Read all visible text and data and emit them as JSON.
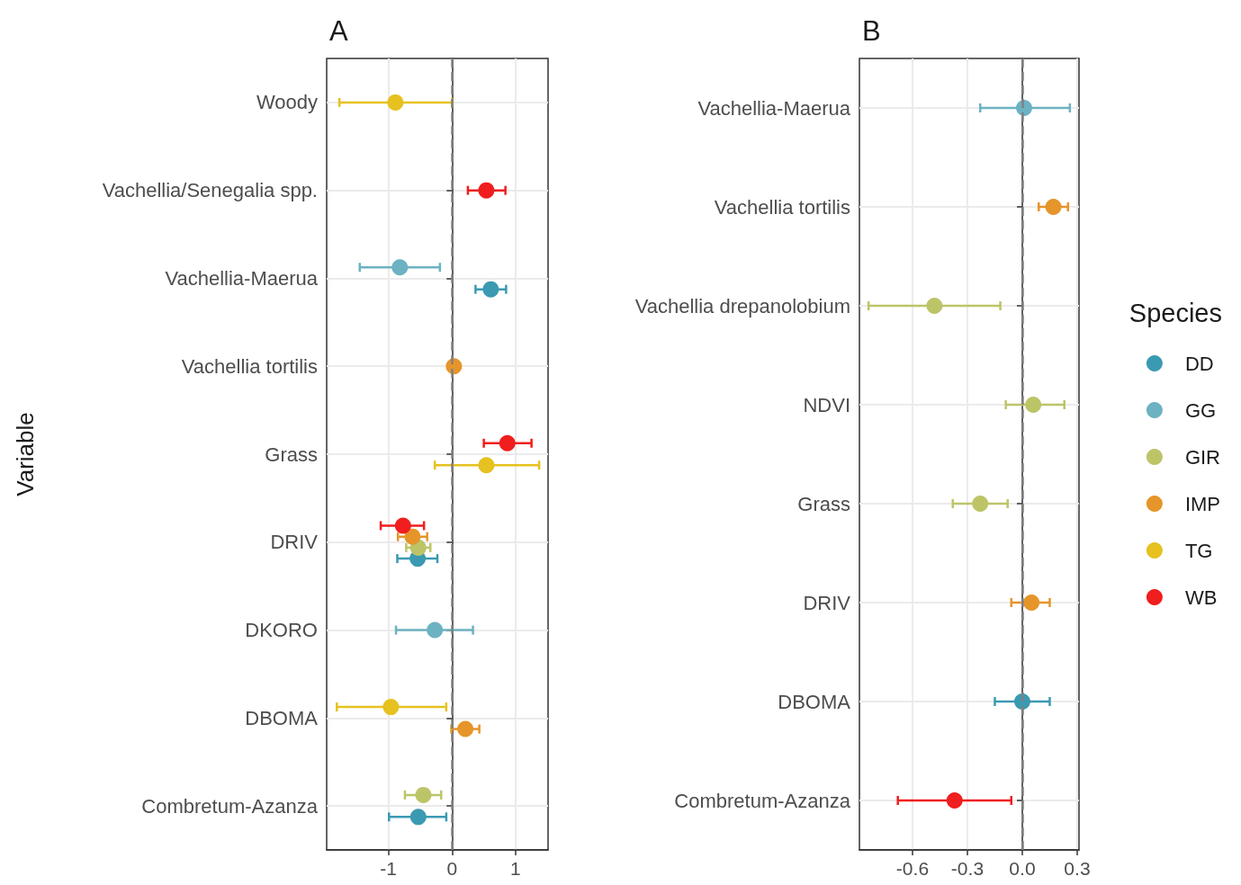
{
  "chart_data": [
    {
      "type": "scatter",
      "title": "A",
      "ylabel": "Variable",
      "legend_title": "Species",
      "legend": "right",
      "orientation": "horizontal",
      "marker": "circle",
      "grid": true,
      "categories": [
        "Woody",
        "Vachellia/Senegalia spp.",
        "Vachellia-Maerua",
        "Vachellia tortilis",
        "Grass",
        "DRIV",
        "DKORO",
        "DBOMA",
        "Combretum-Azanza"
      ],
      "xlim": [
        -1.97,
        1.51
      ],
      "xticks": [
        -1,
        0,
        1
      ],
      "ref_lines": [
        {
          "axis": "x",
          "value": 0,
          "color": "#808080",
          "line_style": "dashed"
        }
      ],
      "series": [
        {
          "name": "DD",
          "color": "#3b9ab2",
          "values": [
            null,
            null,
            0.61,
            null,
            null,
            -0.54,
            null,
            null,
            -0.53
          ],
          "errors": [
            null,
            null,
            [
              0.37,
              0.85
            ],
            null,
            null,
            [
              -0.86,
              -0.23
            ],
            null,
            null,
            [
              -0.99,
              -0.09
            ]
          ]
        },
        {
          "name": "GG",
          "color": "#6cb2c2",
          "values": [
            null,
            null,
            -0.82,
            null,
            null,
            null,
            -0.27,
            null,
            null
          ],
          "errors": [
            null,
            null,
            [
              -1.45,
              -0.19
            ],
            null,
            null,
            null,
            [
              -0.88,
              0.33
            ],
            null,
            null
          ]
        },
        {
          "name": "GIR",
          "color": "#bdc468",
          "values": [
            null,
            null,
            null,
            null,
            null,
            -0.53,
            null,
            null,
            -0.45
          ],
          "errors": [
            null,
            null,
            null,
            null,
            null,
            [
              -0.72,
              -0.34
            ],
            null,
            null,
            [
              -0.74,
              -0.17
            ]
          ]
        },
        {
          "name": "IMP",
          "color": "#e5952a",
          "values": [
            null,
            null,
            null,
            0.03,
            null,
            -0.62,
            null,
            0.21,
            null
          ],
          "errors": [
            null,
            null,
            null,
            null,
            null,
            [
              -0.85,
              -0.39
            ],
            null,
            [
              -0.01,
              0.43
            ],
            null
          ]
        },
        {
          "name": "TG",
          "color": "#e6c11f",
          "values": [
            -0.89,
            null,
            null,
            null,
            0.54,
            null,
            null,
            -0.96,
            null
          ],
          "errors": [
            [
              -1.77,
              0.0
            ],
            null,
            null,
            null,
            [
              -0.27,
              1.37
            ],
            null,
            null,
            [
              -1.81,
              -0.09
            ],
            null
          ]
        },
        {
          "name": "WB",
          "color": "#f01e1e",
          "values": [
            null,
            0.54,
            null,
            null,
            0.87,
            -0.77,
            null,
            null,
            null
          ],
          "errors": [
            null,
            [
              0.25,
              0.84
            ],
            null,
            null,
            [
              0.5,
              1.25
            ],
            [
              -1.12,
              -0.44
            ],
            null,
            null,
            null
          ]
        }
      ]
    },
    {
      "type": "scatter",
      "title": "B",
      "orientation": "horizontal",
      "marker": "circle",
      "grid": true,
      "categories": [
        "Vachellia-Maerua",
        "Vachellia tortilis",
        "Vachellia drepanolobium",
        "NDVI",
        "Grass",
        "DRIV",
        "DBOMA",
        "Combretum-Azanza"
      ],
      "xlim": [
        -0.89,
        0.31
      ],
      "xticks": [
        -0.6,
        -0.3,
        {
          "value": 0,
          "label": "0.0"
        },
        0.3
      ],
      "ref_lines": [
        {
          "axis": "x",
          "value": 0,
          "color": "#808080",
          "line_style": "dashed"
        }
      ],
      "series": [
        {
          "color": "#3b9ab2",
          "values": [
            null,
            null,
            null,
            null,
            null,
            null,
            0.0,
            null
          ],
          "errors": [
            null,
            null,
            null,
            null,
            null,
            null,
            [
              -0.15,
              0.15
            ],
            null
          ]
        },
        {
          "color": "#6cb2c2",
          "values": [
            0.01,
            null,
            null,
            null,
            null,
            null,
            null,
            null
          ],
          "errors": [
            [
              -0.23,
              0.26
            ],
            null,
            null,
            null,
            null,
            null,
            null,
            null
          ]
        },
        {
          "color": "#bdc468",
          "values": [
            null,
            null,
            -0.48,
            0.06,
            -0.23,
            null,
            null,
            null
          ],
          "errors": [
            null,
            null,
            [
              -0.84,
              -0.12
            ],
            [
              -0.09,
              0.23
            ],
            [
              -0.38,
              -0.08
            ],
            null,
            null,
            null
          ]
        },
        {
          "color": "#e5952a",
          "values": [
            null,
            0.17,
            null,
            null,
            null,
            0.05,
            null,
            null
          ],
          "errors": [
            null,
            [
              0.09,
              0.25
            ],
            null,
            null,
            null,
            [
              -0.06,
              0.15
            ],
            null,
            null
          ]
        },
        {
          "color": "#f01e1e",
          "values": [
            null,
            null,
            null,
            null,
            null,
            null,
            null,
            -0.37
          ],
          "errors": [
            null,
            null,
            null,
            null,
            null,
            null,
            null,
            [
              -0.68,
              -0.06
            ]
          ]
        }
      ]
    }
  ]
}
